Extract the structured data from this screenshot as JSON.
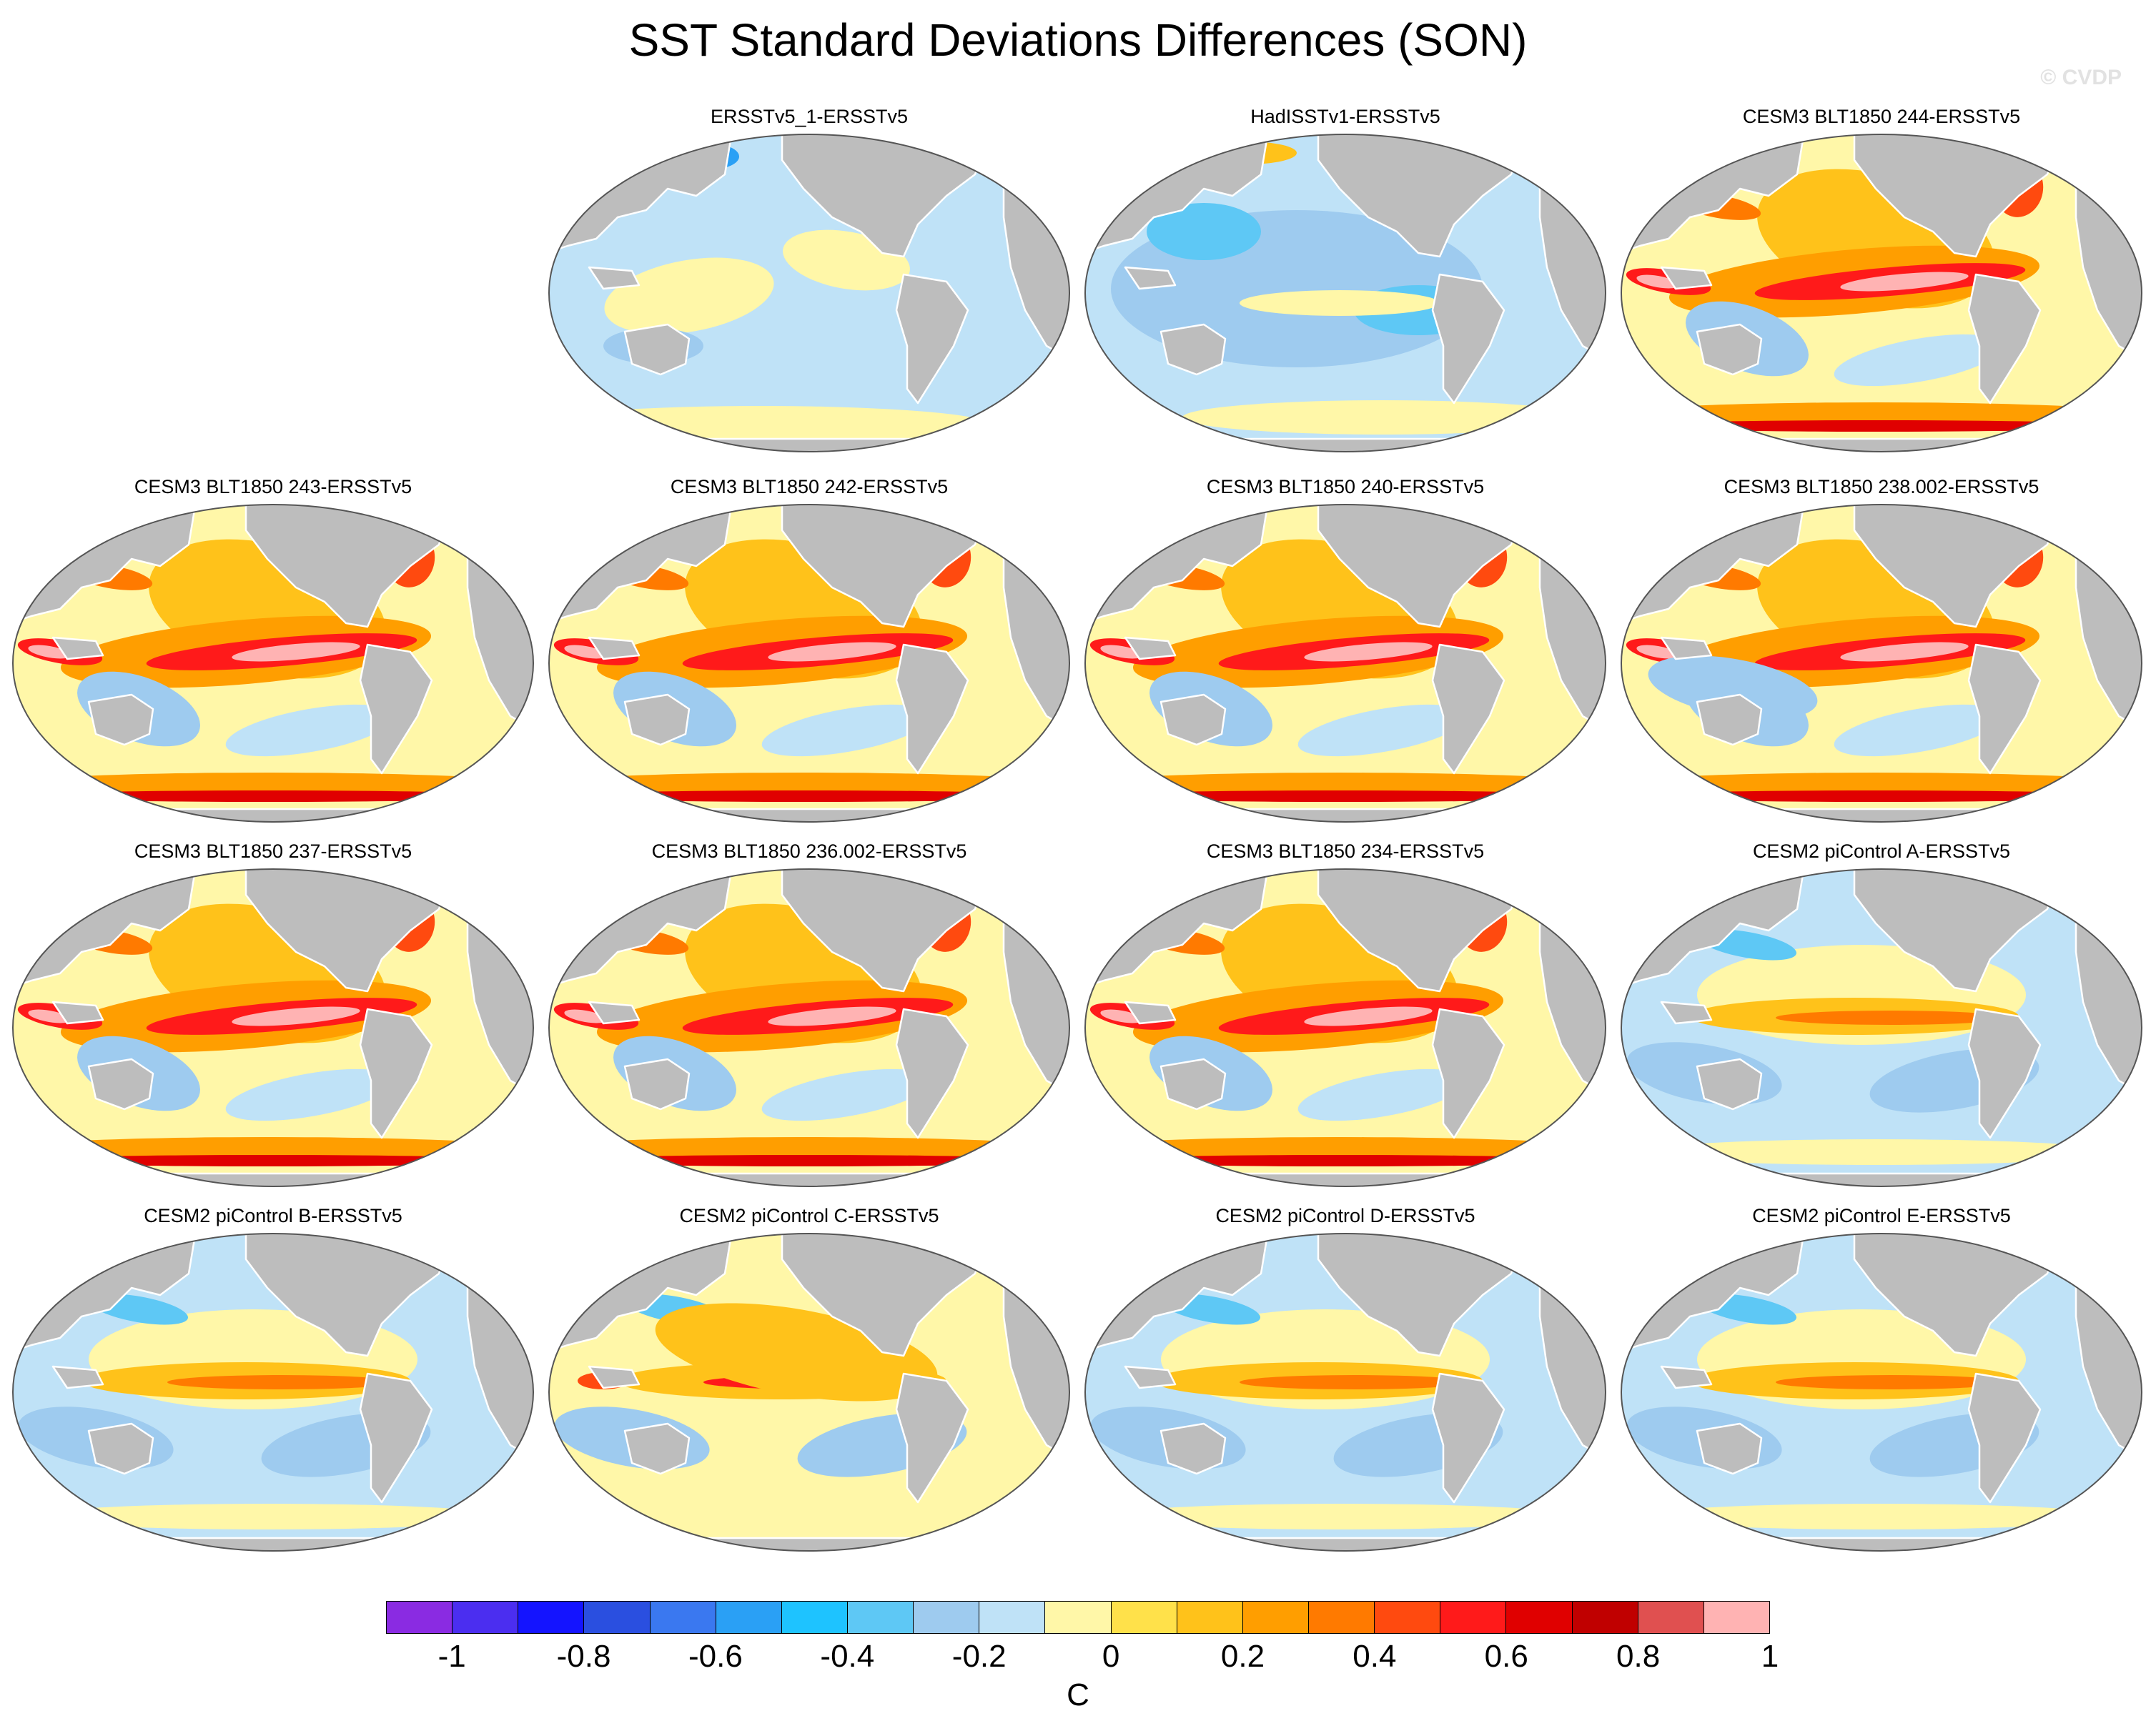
{
  "title": "SST Standard Deviations Differences (SON)",
  "watermark": "© CVDP",
  "panels": [
    {
      "label": "ERSSTv5_1-ERSSTv5",
      "style": "obs_mixed"
    },
    {
      "label": "HadISSTv1-ERSSTv5",
      "style": "obs_blue"
    },
    {
      "label": "CESM3 BLT1850 244-ERSSTv5",
      "style": "model_strong"
    },
    {
      "label": "CESM3 BLT1850 243-ERSSTv5",
      "style": "model_strong"
    },
    {
      "label": "CESM3 BLT1850 242-ERSSTv5",
      "style": "model_strong"
    },
    {
      "label": "CESM3 BLT1850 240-ERSSTv5",
      "style": "model_strong"
    },
    {
      "label": "CESM3 BLT1850 238.002-ERSSTv5",
      "style": "model_medium"
    },
    {
      "label": "CESM3 BLT1850 237-ERSSTv5",
      "style": "model_strong"
    },
    {
      "label": "CESM3 BLT1850 236.002-ERSSTv5",
      "style": "model_strong"
    },
    {
      "label": "CESM3 BLT1850 234-ERSSTv5",
      "style": "model_strong"
    },
    {
      "label": "CESM2 piControl A-ERSSTv5",
      "style": "cesm2"
    },
    {
      "label": "CESM2 piControl B-ERSSTv5",
      "style": "cesm2"
    },
    {
      "label": "CESM2 piControl C-ERSSTv5",
      "style": "cesm2_warm"
    },
    {
      "label": "CESM2 piControl D-ERSSTv5",
      "style": "cesm2"
    },
    {
      "label": "CESM2 piControl E-ERSSTv5",
      "style": "cesm2"
    }
  ],
  "colorbar": {
    "colors": [
      "#8a2be2",
      "#4b2ef0",
      "#1414ff",
      "#2a4fe0",
      "#3a78f0",
      "#2aa0f5",
      "#1ec3ff",
      "#5ec8f5",
      "#9ecbef",
      "#bfe2f7",
      "#fff7a8",
      "#ffe14a",
      "#ffc21a",
      "#ff9e00",
      "#ff7a00",
      "#ff4a0f",
      "#ff1a1a",
      "#e00000",
      "#c00000",
      "#e05050",
      "#ffb3b3"
    ],
    "tick_labels": [
      "-1",
      "-0.8",
      "-0.6",
      "-0.4",
      "-0.2",
      "0",
      "0.2",
      "0.4",
      "0.6",
      "0.8",
      "1"
    ],
    "unit": "C"
  },
  "colors": {
    "land": "#bdbdbd",
    "coast": "#ffffff",
    "outline": "#555555"
  }
}
